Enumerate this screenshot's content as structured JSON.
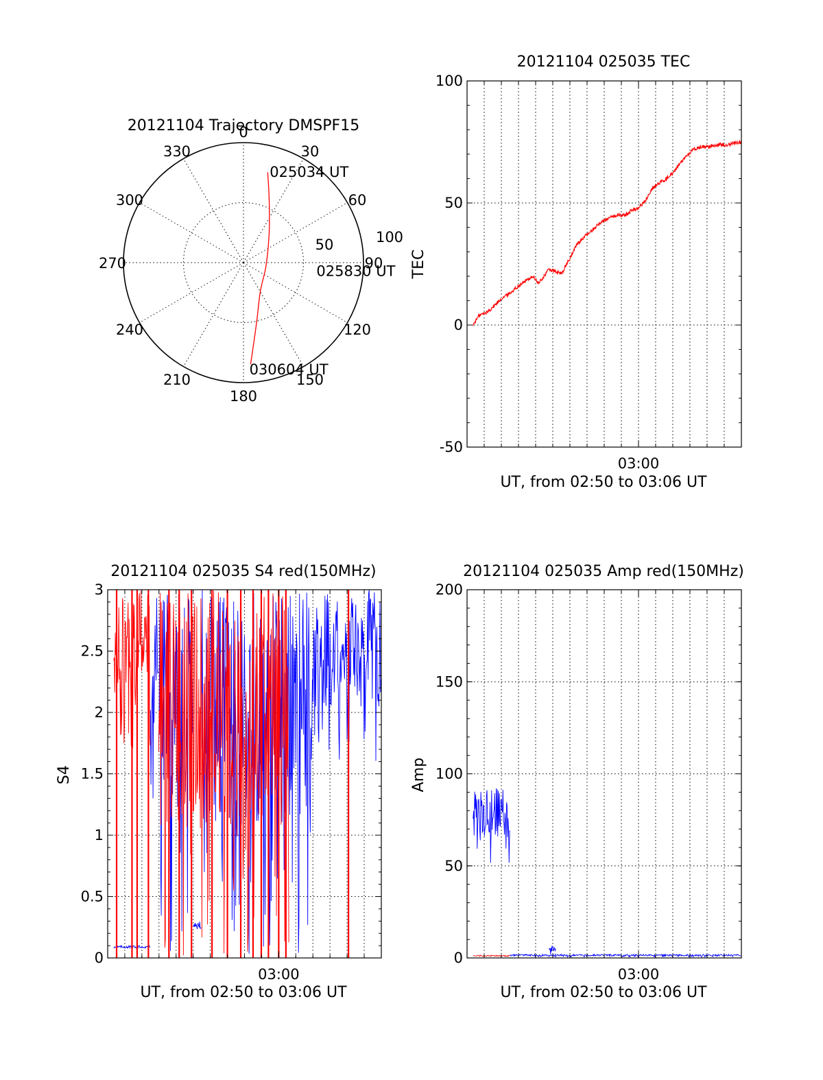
{
  "colors": {
    "red": "#ff0000",
    "blue": "#0000ff",
    "axis": "#000000"
  },
  "chart_data": [
    {
      "type": "polar",
      "title": "20121104 Trajectory DMSPF15",
      "azimuth_labels": [
        "0",
        "30",
        "60",
        "90",
        "120",
        "150",
        "180",
        "210",
        "240",
        "270",
        "300",
        "330"
      ],
      "radial_labels": [
        "50",
        "100"
      ],
      "rlim": [
        0,
        100
      ],
      "grid": true,
      "series": [
        {
          "color": "#ff0000",
          "points": [
            {
              "az": 15,
              "r": 78
            },
            {
              "az": 20,
              "r": 62
            },
            {
              "az": 28,
              "r": 46
            },
            {
              "az": 45,
              "r": 30
            },
            {
              "az": 100,
              "r": 19
            },
            {
              "az": 150,
              "r": 28
            },
            {
              "az": 168,
              "r": 52
            },
            {
              "az": 176,
              "r": 85
            }
          ]
        }
      ],
      "annotations": [
        {
          "text": "025034 UT",
          "az": 18,
          "r": 80
        },
        {
          "text": "025830 UT",
          "az": 96,
          "r": 64
        },
        {
          "text": "030604 UT",
          "az": 175,
          "r": 89
        }
      ]
    },
    {
      "type": "line",
      "title": "20121104 025035 TEC",
      "xlabel": "UT, from 02:50 to 03:06 UT",
      "ylabel": "TEC",
      "xlim": [
        2.8333,
        3.1
      ],
      "ylim": [
        -50,
        100
      ],
      "yticks": [
        "-50",
        "0",
        "50",
        "100"
      ],
      "xticks": [
        {
          "value": 3.0,
          "label": "03:00"
        }
      ],
      "grid": true,
      "series": [
        {
          "color": "#ff0000",
          "x": [
            2.8392,
            2.845,
            2.852,
            2.86,
            2.867,
            2.875,
            2.883,
            2.89,
            2.897,
            2.903,
            2.908,
            2.913,
            2.918,
            2.925,
            2.933,
            2.94,
            2.947,
            2.953,
            2.96,
            2.967,
            2.973,
            2.98,
            2.987,
            2.993,
            3.0,
            3.007,
            3.013,
            3.02,
            3.027,
            3.033,
            3.04,
            3.047,
            3.053,
            3.06,
            3.067,
            3.073,
            3.08,
            3.087,
            3.093,
            3.1
          ],
          "y": [
            0,
            4,
            5,
            8,
            11,
            13,
            16,
            18,
            20,
            17,
            20,
            23,
            22,
            21,
            27,
            33,
            36,
            38,
            41,
            43,
            44,
            45,
            45,
            47,
            48,
            51,
            56,
            58,
            60,
            62,
            66,
            69,
            72,
            73,
            73,
            73.5,
            74,
            74,
            74.5,
            75
          ]
        }
      ]
    },
    {
      "type": "line",
      "title": "20121104 025035 S4 red(150MHz)",
      "xlabel": "UT, from 02:50 to 03:06 UT",
      "ylabel": "S4",
      "xlim": [
        2.8333,
        3.1
      ],
      "ylim": [
        0,
        3
      ],
      "yticks": [
        "0",
        "0.5",
        "1",
        "1.5",
        "2",
        "2.5",
        "3"
      ],
      "xticks": [
        {
          "value": 3.0,
          "label": "03:00"
        }
      ],
      "grid": true,
      "series": [
        {
          "color": "#0000ff",
          "segments": [
            {
              "from": 2.8392,
              "to": 2.875,
              "low": 0.07,
              "high": 0.1
            },
            {
              "from": 2.875,
              "to": 2.883,
              "low": 1.2,
              "high": 3
            },
            {
              "from": 2.883,
              "to": 2.917,
              "low": 0.0,
              "high": 3
            },
            {
              "from": 2.917,
              "to": 2.925,
              "low": 0.2,
              "high": 0.3
            },
            {
              "from": 2.925,
              "to": 3.033,
              "low": 0.0,
              "high": 3
            },
            {
              "from": 3.033,
              "to": 3.1,
              "low": 1.5,
              "high": 3
            }
          ]
        },
        {
          "color": "#ff0000",
          "segments": [
            {
              "from": 2.8392,
              "to": 2.875,
              "low": 1.7,
              "high": 3
            },
            {
              "from": 2.883,
              "to": 3.01,
              "low": 0.0,
              "high": 3
            }
          ],
          "spikes": [
            2.842,
            2.857,
            2.862,
            2.873,
            2.893,
            2.903,
            2.915,
            2.935,
            2.95,
            2.963,
            2.975,
            2.983,
            2.99,
            3.0,
            3.007,
            3.068
          ]
        }
      ]
    },
    {
      "type": "line",
      "title": "20121104 025035 Amp red(150MHz)",
      "xlabel": "UT, from 02:50 to 03:06 UT",
      "ylabel": "Amp",
      "xlim": [
        2.8333,
        3.1
      ],
      "ylim": [
        0,
        200
      ],
      "yticks": [
        "0",
        "50",
        "100",
        "150",
        "200"
      ],
      "xticks": [
        {
          "value": 3.0,
          "label": "03:00"
        }
      ],
      "grid": true,
      "series": [
        {
          "color": "#0000ff",
          "segments": [
            {
              "from": 2.8392,
              "to": 2.875,
              "low": 50,
              "high": 95
            },
            {
              "from": 2.875,
              "to": 3.1,
              "low": 0.5,
              "high": 2
            },
            {
              "from": 2.913,
              "to": 2.92,
              "low": 2,
              "high": 7
            }
          ]
        },
        {
          "color": "#ff0000",
          "segments": [
            {
              "from": 2.8392,
              "to": 2.875,
              "low": 0.5,
              "high": 1.5
            }
          ]
        }
      ]
    }
  ]
}
